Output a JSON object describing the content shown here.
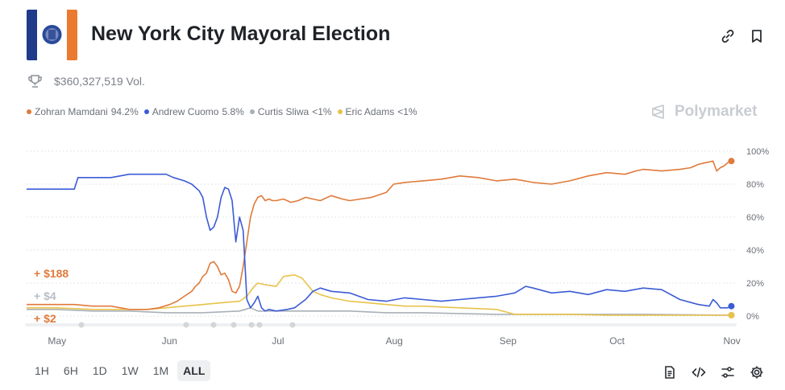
{
  "header": {
    "title": "New York City Mayoral Election",
    "logo_alt_colors": [
      "#1f3b8a",
      "#ffffff",
      "#ea7a2f"
    ]
  },
  "volume": {
    "icon": "trophy-icon",
    "text": "$360,327,519 Vol."
  },
  "legend": [
    {
      "name": "Zohran Mamdani",
      "value": "94.2%",
      "color": "#e07a3a"
    },
    {
      "name": "Andrew Cuomo",
      "value": "5.8%",
      "color": "#3b5bd6"
    },
    {
      "name": "Curtis Sliwa",
      "value": "<1%",
      "color": "#a9b0b8"
    },
    {
      "name": "Eric Adams",
      "value": "<1%",
      "color": "#e8c24a"
    }
  ],
  "brand": "Polymarket",
  "gains": [
    {
      "text": "+ $188",
      "color": "#e07a3a"
    },
    {
      "text": "+ $4",
      "color": "#b8bec6"
    },
    {
      "text": "+ $2",
      "color": "#e07a3a"
    }
  ],
  "time_ranges": [
    "1H",
    "6H",
    "1D",
    "1W",
    "1M",
    "ALL"
  ],
  "active_range": "ALL",
  "chart_data": {
    "type": "line",
    "title": "New York City Mayoral Election",
    "xlabel": "",
    "ylabel": "",
    "x_ticks": [
      "May",
      "Jun",
      "Jul",
      "Aug",
      "Sep",
      "Oct",
      "Nov"
    ],
    "x_tick_days": [
      0,
      31,
      61,
      92,
      123,
      153,
      184
    ],
    "y_ticks": [
      "0%",
      "20%",
      "40%",
      "60%",
      "80%",
      "100%"
    ],
    "ylim": [
      0,
      100
    ],
    "xlim": [
      -8,
      185
    ],
    "grid": "horizontal dotted",
    "series": [
      {
        "name": "Zohran Mamdani",
        "color": "#e07a3a",
        "x": [
          -8,
          0,
          5,
          10,
          15,
          20,
          25,
          28,
          31,
          33,
          35,
          37,
          38,
          39,
          40,
          41,
          42,
          43,
          44,
          45,
          46,
          47,
          48,
          49,
          50,
          51,
          52,
          53,
          54,
          55,
          56,
          57,
          58,
          59,
          60,
          62,
          64,
          66,
          68,
          70,
          72,
          75,
          78,
          80,
          83,
          86,
          90,
          92,
          95,
          100,
          105,
          110,
          115,
          120,
          125,
          130,
          135,
          140,
          145,
          150,
          155,
          158,
          160,
          165,
          170,
          173,
          175,
          177,
          179,
          180,
          181,
          182,
          183,
          184
        ],
        "values": [
          7,
          7,
          7,
          6,
          6,
          4,
          4,
          5,
          7,
          9,
          12,
          15,
          18,
          20,
          24,
          26,
          32,
          33,
          30,
          25,
          26,
          22,
          15,
          14,
          18,
          30,
          45,
          60,
          68,
          72,
          73,
          70,
          71,
          70,
          70,
          71,
          69,
          70,
          72,
          71,
          70,
          73,
          71,
          70,
          71,
          72,
          75,
          80,
          81,
          82,
          83,
          85,
          84,
          82,
          83,
          81,
          80,
          82,
          85,
          87,
          86,
          88,
          89,
          88,
          89,
          90,
          92,
          93,
          94,
          88,
          90,
          91,
          93,
          94
        ]
      },
      {
        "name": "Andrew Cuomo",
        "color": "#3b5bd6",
        "x": [
          -8,
          0,
          5,
          6,
          10,
          15,
          20,
          25,
          30,
          32,
          35,
          37,
          38,
          39,
          40,
          41,
          42,
          43,
          44,
          45,
          46,
          47,
          48,
          49,
          50,
          51,
          52,
          53,
          54,
          55,
          56,
          57,
          58,
          60,
          63,
          65,
          68,
          70,
          72,
          75,
          80,
          85,
          90,
          95,
          100,
          105,
          110,
          115,
          120,
          125,
          128,
          130,
          135,
          140,
          145,
          150,
          155,
          160,
          165,
          170,
          175,
          178,
          179,
          180,
          181,
          182,
          183,
          184
        ],
        "values": [
          77,
          77,
          77,
          84,
          84,
          84,
          86,
          86,
          86,
          84,
          82,
          80,
          78,
          76,
          72,
          60,
          52,
          54,
          60,
          72,
          78,
          77,
          70,
          45,
          60,
          52,
          10,
          5,
          8,
          12,
          5,
          3,
          4,
          3,
          4,
          5,
          10,
          15,
          17,
          15,
          14,
          10,
          9,
          11,
          10,
          9,
          10,
          11,
          12,
          14,
          18,
          17,
          14,
          15,
          13,
          16,
          15,
          17,
          16,
          10,
          7,
          6,
          10,
          8,
          5,
          5,
          5,
          6
        ]
      },
      {
        "name": "Curtis Sliwa",
        "color": "#a9b0b8",
        "x": [
          -8,
          0,
          10,
          20,
          30,
          40,
          50,
          53,
          55,
          60,
          70,
          80,
          90,
          100,
          120,
          140,
          160,
          184
        ],
        "values": [
          4,
          4,
          3,
          3,
          2,
          2,
          3,
          5,
          3,
          3,
          3,
          3,
          2,
          2,
          1,
          1,
          1,
          0.5
        ]
      },
      {
        "name": "Eric Adams",
        "color": "#e8c24a",
        "x": [
          -8,
          0,
          10,
          20,
          25,
          30,
          35,
          40,
          45,
          50,
          52,
          54,
          55,
          57,
          60,
          62,
          65,
          67,
          70,
          72,
          75,
          80,
          85,
          90,
          95,
          100,
          110,
          120,
          125,
          130,
          140,
          150,
          160,
          170,
          184
        ],
        "values": [
          5,
          5,
          4,
          4,
          4,
          5,
          6,
          7,
          8,
          9,
          12,
          18,
          20,
          19,
          18,
          24,
          25,
          23,
          15,
          13,
          11,
          9,
          8,
          7,
          6,
          6,
          5,
          4,
          1,
          1,
          1,
          0.5,
          0.5,
          0.5,
          0.5
        ]
      }
    ]
  }
}
